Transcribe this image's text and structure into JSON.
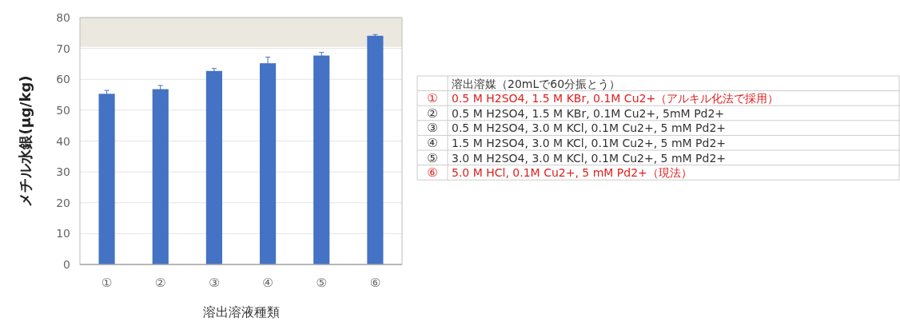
{
  "chart_data": [
    {
      "type": "bar",
      "xlabel": "溶出溶液種類",
      "ylabel": "メチル水銀(μg/kg)",
      "categories": [
        "①",
        "②",
        "③",
        "④",
        "⑤",
        "⑥"
      ],
      "values": [
        55.3,
        56.8,
        62.7,
        65.2,
        67.7,
        74.1
      ],
      "errors": [
        1.1,
        1.2,
        0.8,
        2.0,
        1.0,
        0.4
      ],
      "color": "#4472c4",
      "ylim": [
        0,
        80
      ],
      "yticks": [
        0,
        10,
        20,
        30,
        40,
        50,
        60,
        70,
        80
      ],
      "grid": "y",
      "bands": [
        {
          "axis": "y",
          "from": 70.5,
          "to": 80,
          "color": "#ebe8e0"
        }
      ]
    },
    {
      "type": "other",
      "title": "溶出溶媒（20mLで60分振とう）",
      "categories": [
        "①",
        "②",
        "③",
        "④",
        "⑤",
        "⑥"
      ],
      "annotations": [
        "0.5 M H2SO4, 1.5 M KBr, 0.1M Cu2+（アルキル化法で採用）",
        "0.5 M H2SO4, 1.5 M KBr, 0.1M Cu2+, 5mM Pd2+",
        "0.5 M H2SO4, 3.0 M KCl, 0.1M Cu2+, 5 mM Pd2+",
        "1.5 M H2SO4, 3.0 M KCl, 0.1M Cu2+, 5 mM Pd2+",
        "3.0 M H2SO4, 3.0 M KCl, 0.1M Cu2+, 5 mM Pd2+",
        "5.0 M HCl, 0.1M Cu2+, 5 mM Pd2+（現法）"
      ],
      "colors": [
        "#e02020",
        "#333333",
        "#333333",
        "#333333",
        "#333333",
        "#e02020"
      ]
    }
  ]
}
